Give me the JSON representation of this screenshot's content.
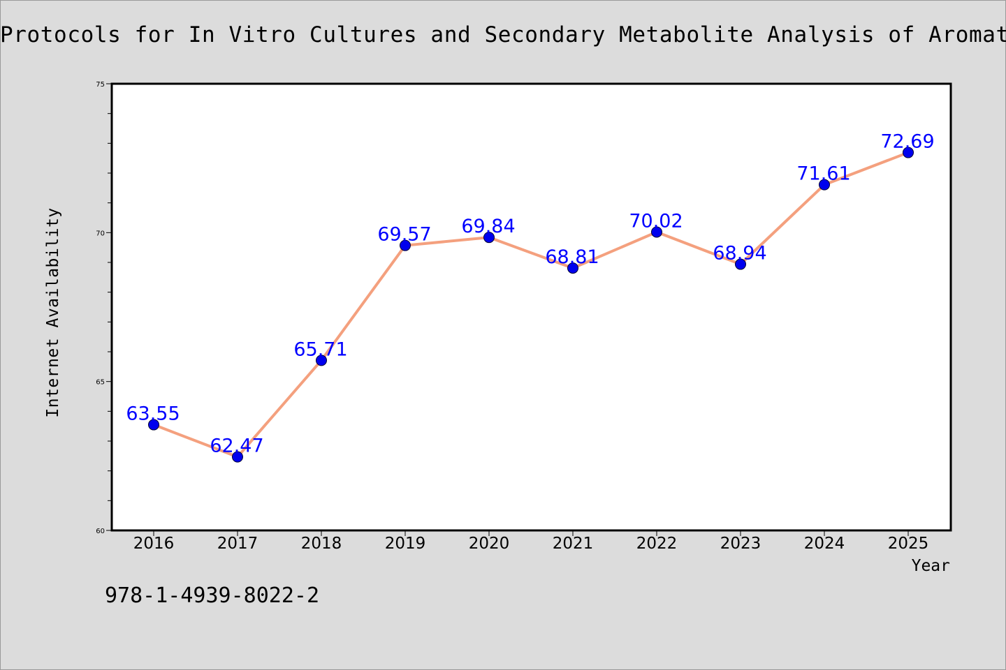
{
  "chart_data": {
    "type": "line",
    "title": "Protocols for In Vitro Cultures and Secondary Metabolite Analysis of Aromatic an",
    "xlabel": "Year",
    "ylabel": "Internet Availability",
    "categories": [
      "2016",
      "2017",
      "2018",
      "2019",
      "2020",
      "2021",
      "2022",
      "2023",
      "2024",
      "2025"
    ],
    "series": [
      {
        "values": [
          63.55,
          62.47,
          65.71,
          69.57,
          69.84,
          68.81,
          70.02,
          68.94,
          71.61,
          72.69
        ],
        "labels": [
          "63.55",
          "62.47",
          "65.71",
          "69.57",
          "69.84",
          "68.81",
          "70.02",
          "68.94",
          "71.61",
          "72.69"
        ]
      }
    ],
    "ylim": [
      60,
      75
    ],
    "yticks": [
      "60",
      "65",
      "70",
      "75"
    ],
    "grid": false,
    "line_color": "#f4a07e",
    "marker_color": "#0000ee",
    "label_color": "#0000ff"
  },
  "footer_text": "978-1-4939-8022-2"
}
